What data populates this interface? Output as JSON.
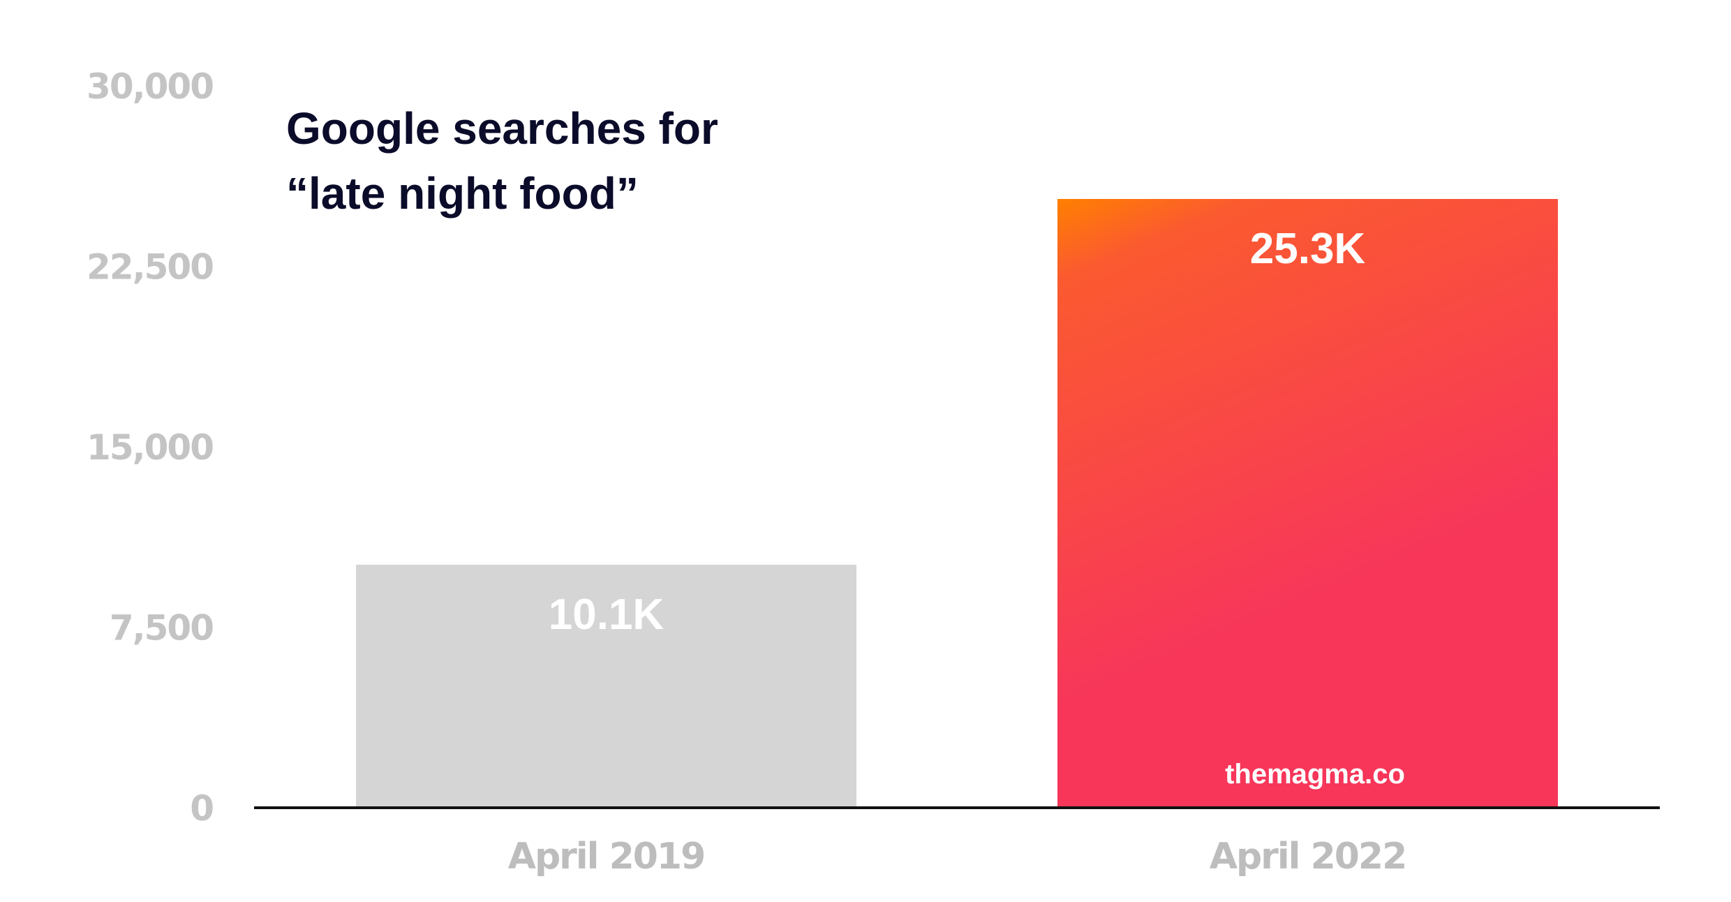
{
  "chart_data": {
    "type": "bar",
    "title_lines": [
      "Google searches for",
      "“late night food”"
    ],
    "categories": [
      "April 2019",
      "April 2022"
    ],
    "values": [
      10100,
      25300
    ],
    "data_labels": [
      "10.1K",
      "25.3K"
    ],
    "ylim": [
      0,
      30000
    ],
    "yticks": [
      0,
      7500,
      15000,
      22500,
      30000
    ],
    "ytick_labels": [
      "0",
      "7,500",
      "15,000",
      "22,500",
      "30,000"
    ],
    "xlabel": "",
    "ylabel": "",
    "grid": false,
    "colors": {
      "bar_2019": "#d5d5d5",
      "bar_2022_gradient": [
        "#ff8000",
        "#fb5a30",
        "#f7365a"
      ],
      "axis": "#111111",
      "title": "#0b0b2a"
    },
    "watermark": "themagma.co"
  }
}
